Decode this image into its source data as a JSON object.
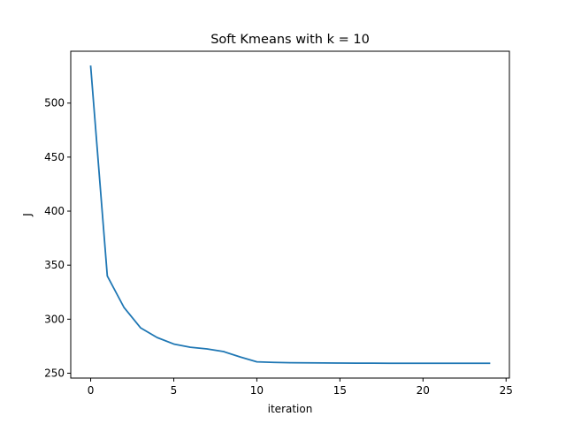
{
  "chart_data": {
    "type": "line",
    "title": "Soft Kmeans with k = 10",
    "xlabel": "iteration",
    "ylabel": "J",
    "xlim": [
      -1.2,
      25.2
    ],
    "ylim": [
      245.5,
      548
    ],
    "xticks": [
      0,
      5,
      10,
      15,
      20,
      25
    ],
    "yticks": [
      250,
      300,
      350,
      400,
      450,
      500
    ],
    "grid": false,
    "series": [
      {
        "color": "#1f77b4",
        "x": [
          0,
          1,
          2,
          3,
          4,
          5,
          6,
          7,
          8,
          9,
          10,
          11,
          12,
          13,
          14,
          15,
          16,
          17,
          18,
          19,
          20,
          21,
          22,
          23,
          24
        ],
        "y": [
          534,
          340,
          311,
          292,
          283,
          277,
          274,
          272.5,
          270,
          265,
          260.5,
          260,
          259.7,
          259.6,
          259.5,
          259.4,
          259.3,
          259.3,
          259.2,
          259.2,
          259.2,
          259.2,
          259.2,
          259.2,
          259.2
        ]
      }
    ]
  }
}
